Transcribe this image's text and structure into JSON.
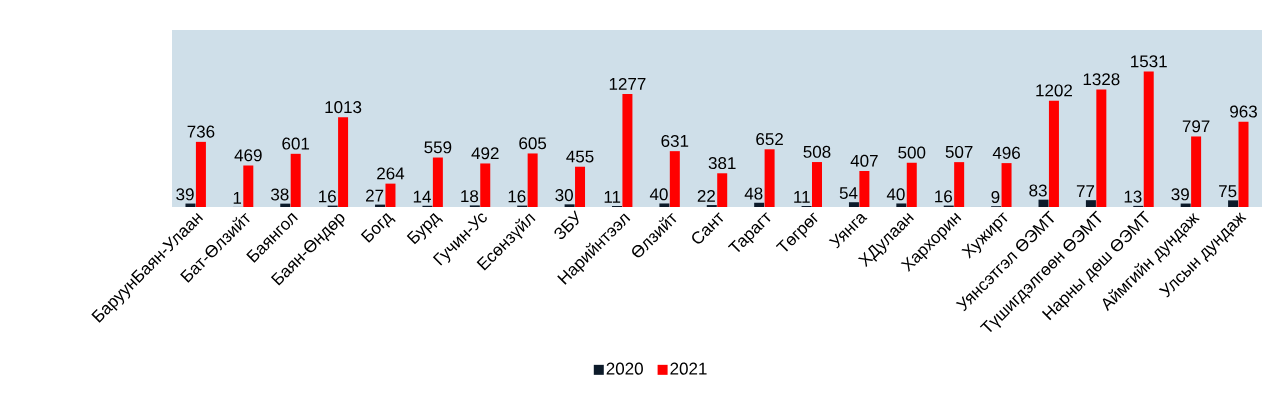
{
  "chart_data": {
    "type": "bar",
    "categories": [
      "БаруунБаян-Улаан",
      "Бат-Өлзийт",
      "Баянгол",
      "Баян-Өндөр",
      "Богд",
      "Бурд",
      "Гучин-Ус",
      "Есөнзүйл",
      "ЗБУ",
      "Нарийнтээл",
      "Өлзийт",
      "Сант",
      "Тарагт",
      "Төгрөг",
      "Уянга",
      "ХДулаан",
      "Хархорин",
      "Хужирт",
      "Уянсэтгэл ӨЭМТ",
      "Түшигдэлгөөн ӨЭМТ",
      "Нарны дөш ӨЭМТ",
      "Аймгийн дундаж",
      "Улсын дундаж"
    ],
    "series": [
      {
        "name": "2020",
        "color": "#0d1b2a",
        "values": [
          39,
          1,
          38,
          16,
          27,
          14,
          18,
          16,
          30,
          11,
          40,
          22,
          48,
          11,
          54,
          40,
          16,
          9,
          83,
          77,
          13,
          39,
          75
        ]
      },
      {
        "name": "2021",
        "color": "#ff0000",
        "values": [
          736,
          469,
          601,
          1013,
          264,
          559,
          492,
          605,
          455,
          1277,
          631,
          381,
          652,
          508,
          407,
          500,
          507,
          496,
          1202,
          1328,
          1531,
          797,
          963
        ]
      }
    ],
    "ylim": [
      0,
      2000
    ],
    "data_labels": true,
    "legend": "bottom"
  }
}
